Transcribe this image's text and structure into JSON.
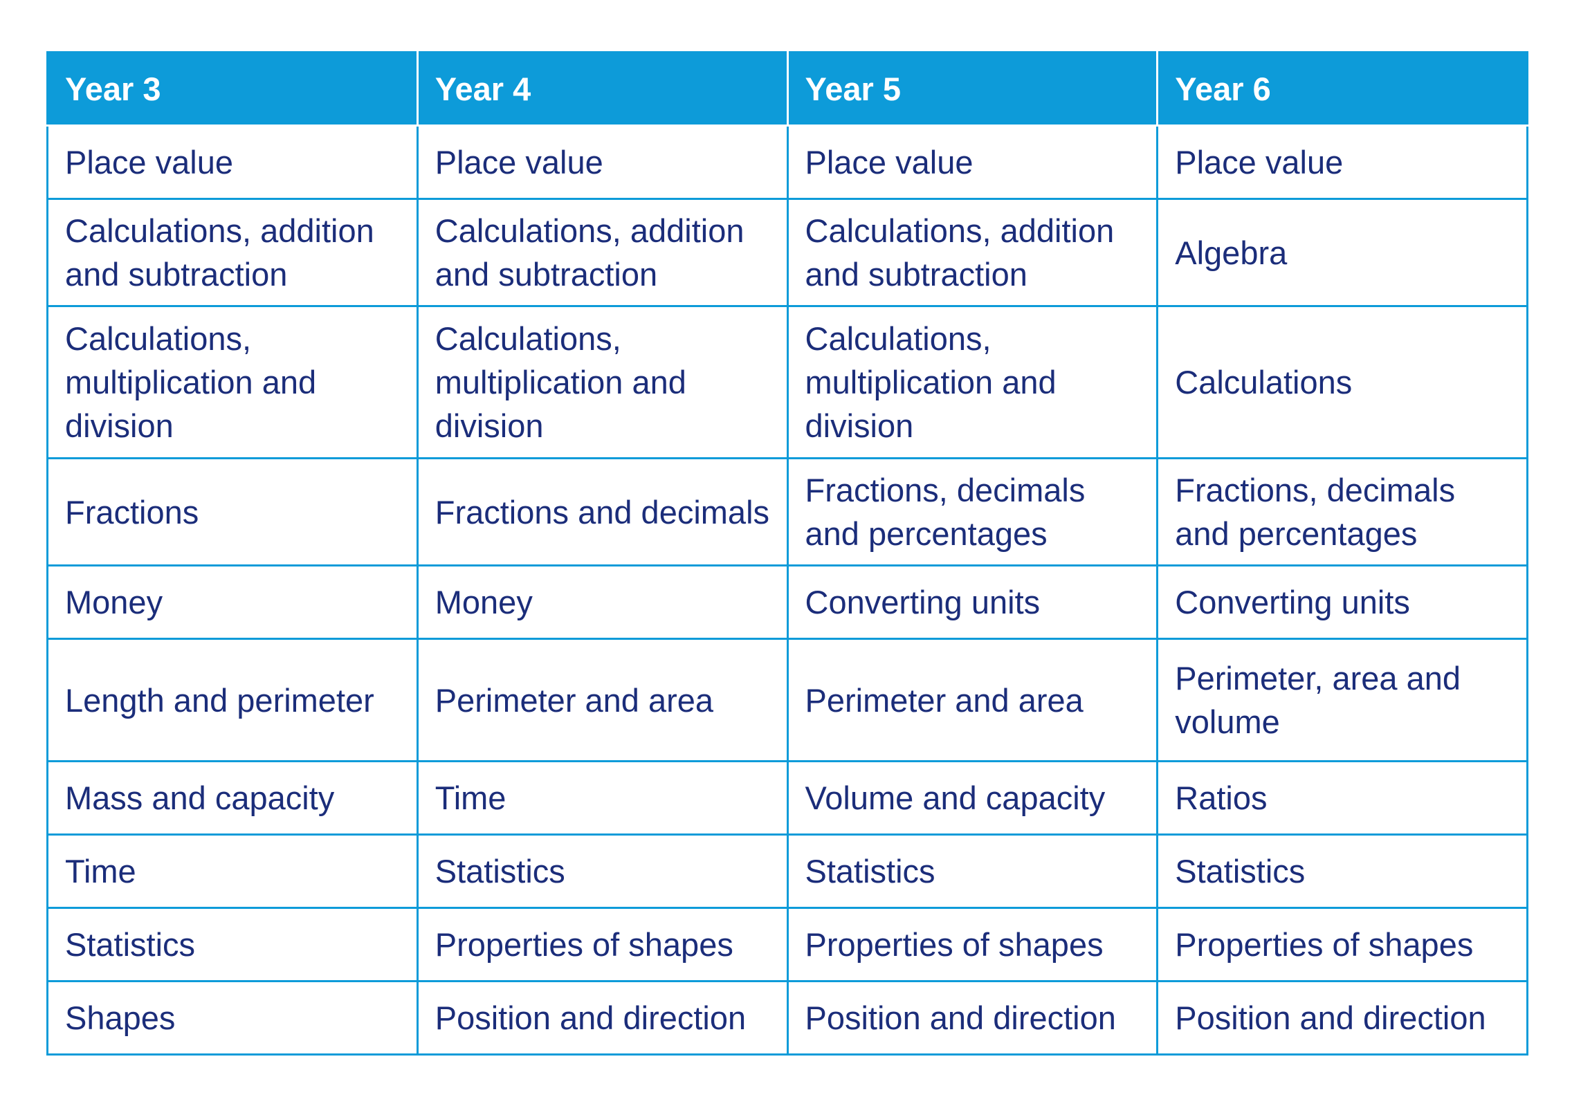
{
  "table": {
    "headers": [
      "Year 3",
      "Year 4",
      "Year 5",
      "Year 6"
    ],
    "rows": [
      [
        "Place value",
        "Place value",
        "Place value",
        "Place value"
      ],
      [
        "Calculations, addition and subtraction",
        "Calculations, addition and subtraction",
        "Calculations, addition and subtraction",
        "Algebra"
      ],
      [
        "Calculations, multiplication and division",
        "Calculations, multiplication and division",
        "Calculations, multiplication and division",
        "Calculations"
      ],
      [
        "Fractions",
        "Fractions and decimals",
        "Fractions, decimals and percentages",
        "Fractions, decimals and percentages"
      ],
      [
        "Money",
        "Money",
        "Converting units",
        "Converting units"
      ],
      [
        "Length and perimeter",
        "Perimeter and area",
        "Perimeter and area",
        "Perimeter, area and volume"
      ],
      [
        "Mass and capacity",
        "Time",
        "Volume and capacity",
        "Ratios"
      ],
      [
        "Time",
        "Statistics",
        "Statistics",
        "Statistics"
      ],
      [
        "Statistics",
        "Properties of shapes",
        "Properties of shapes",
        "Properties of shapes"
      ],
      [
        "Shapes",
        "Position and direction",
        "Position and direction",
        "Position and direction"
      ]
    ]
  },
  "colors": {
    "header_background": "#0d9bd9",
    "header_text": "#ffffff",
    "body_text": "#1b2d7a",
    "border": "#0d9bd9"
  }
}
